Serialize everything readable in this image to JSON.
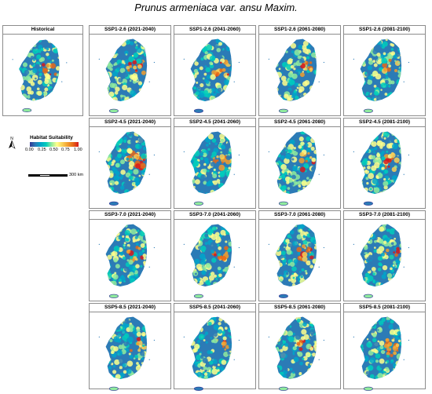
{
  "title": "Prunus armeniaca var. ansu Maxim.",
  "historical_panel": {
    "title": "Historical"
  },
  "legend": {
    "north_label": "N",
    "title": "Habitat Suitability",
    "ticks": [
      "0.00",
      "0.25",
      "0.50",
      "0.75",
      "1.00"
    ],
    "colors": [
      "#313695",
      "#2c7bb6",
      "#00a6ca",
      "#00ccbc",
      "#90eb9d",
      "#ffff8c",
      "#f9d057",
      "#f29e2e",
      "#e76818",
      "#d7191c"
    ],
    "scale_label": "300 km"
  },
  "scenario_panels": [
    [
      "SSP1-2.6 (2021-2040)",
      "SSP1-2.6 (2041-2060)",
      "SSP1-2.6 (2061-2080)",
      "SSP1-2.6 (2081-2100)"
    ],
    [
      "SSP2-4.5 (2021-2040)",
      "SSP2-4.5 (2041-2060)",
      "SSP2-4.5 (2061-2080)",
      "SSP2-4.5 (2081-2100)"
    ],
    [
      "SSP3-7.0 (2021-2040)",
      "SSP3-7.0 (2041-2060)",
      "SSP3-7.0 (2061-2080)",
      "SSP3-7.0 (2081-2100)"
    ],
    [
      "SSP5-8.5 (2021-2040)",
      "SSP5-8.5 (2041-2060)",
      "SSP5-8.5 (2061-2080)",
      "SSP5-8.5 (2081-2100)"
    ]
  ]
}
